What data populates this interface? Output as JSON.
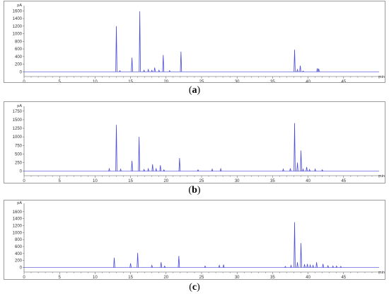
{
  "chart_data": [
    {
      "type": "line",
      "panel_label": "a",
      "y_unit": "pA",
      "x_unit": "min",
      "xlim": [
        0,
        50
      ],
      "ylim": [
        -50,
        1700
      ],
      "x_ticks": [
        0,
        5,
        10,
        15,
        20,
        25,
        30,
        35,
        40,
        45
      ],
      "y_ticks": [
        0,
        200,
        400,
        600,
        800,
        1000,
        1200,
        1400,
        1600
      ],
      "color": "#4a4ad8",
      "peaks": [
        [
          13.0,
          1200
        ],
        [
          13.5,
          30
        ],
        [
          15.2,
          370
        ],
        [
          16.3,
          1590
        ],
        [
          16.9,
          40
        ],
        [
          17.5,
          60
        ],
        [
          18.0,
          40
        ],
        [
          18.4,
          110
        ],
        [
          19.0,
          40
        ],
        [
          19.6,
          440
        ],
        [
          20.5,
          30
        ],
        [
          22.1,
          530
        ],
        [
          38.1,
          580
        ],
        [
          38.5,
          60
        ],
        [
          38.9,
          160
        ],
        [
          39.3,
          20
        ],
        [
          41.3,
          90
        ],
        [
          41.5,
          80
        ]
      ]
    },
    {
      "type": "line",
      "panel_label": "b",
      "y_unit": "pA",
      "x_unit": "min",
      "xlim": [
        0,
        50
      ],
      "ylim": [
        -50,
        1850
      ],
      "x_ticks": [
        0,
        5,
        10,
        15,
        20,
        25,
        30,
        35,
        40,
        45
      ],
      "y_ticks": [
        0,
        250,
        500,
        750,
        1000,
        1250,
        1500,
        1750
      ],
      "color": "#4a4ad8",
      "peaks": [
        [
          12.0,
          70
        ],
        [
          13.0,
          1350
        ],
        [
          13.6,
          60
        ],
        [
          15.2,
          300
        ],
        [
          16.2,
          1000
        ],
        [
          16.9,
          50
        ],
        [
          17.5,
          70
        ],
        [
          18.1,
          200
        ],
        [
          18.6,
          70
        ],
        [
          19.2,
          170
        ],
        [
          19.7,
          40
        ],
        [
          21.9,
          380
        ],
        [
          24.5,
          40
        ],
        [
          26.5,
          60
        ],
        [
          27.7,
          70
        ],
        [
          36.5,
          60
        ],
        [
          37.5,
          80
        ],
        [
          38.1,
          1400
        ],
        [
          38.5,
          250
        ],
        [
          39.0,
          600
        ],
        [
          39.3,
          60
        ],
        [
          39.8,
          120
        ],
        [
          40.2,
          50
        ],
        [
          41.0,
          60
        ],
        [
          42.0,
          40
        ]
      ]
    },
    {
      "type": "line",
      "panel_label": "c",
      "y_unit": "pA",
      "x_unit": "min",
      "xlim": [
        0,
        50
      ],
      "ylim": [
        -50,
        1800
      ],
      "x_ticks": [
        0,
        5,
        10,
        15,
        20,
        25,
        30,
        35,
        40,
        45
      ],
      "y_ticks": [
        0,
        200,
        400,
        600,
        800,
        1000,
        1200,
        1400,
        1600
      ],
      "color": "#4a4ad8",
      "peaks": [
        [
          12.7,
          280
        ],
        [
          15.0,
          120
        ],
        [
          16.0,
          420
        ],
        [
          18.0,
          60
        ],
        [
          19.3,
          150
        ],
        [
          19.8,
          40
        ],
        [
          21.8,
          330
        ],
        [
          25.5,
          40
        ],
        [
          27.5,
          60
        ],
        [
          28.1,
          80
        ],
        [
          36.8,
          30
        ],
        [
          37.6,
          60
        ],
        [
          38.1,
          1300
        ],
        [
          38.5,
          150
        ],
        [
          39.0,
          700
        ],
        [
          39.5,
          90
        ],
        [
          39.9,
          100
        ],
        [
          40.3,
          70
        ],
        [
          40.7,
          60
        ],
        [
          41.2,
          150
        ],
        [
          42.1,
          100
        ],
        [
          42.8,
          50
        ],
        [
          43.5,
          40
        ],
        [
          44.0,
          40
        ],
        [
          44.6,
          30
        ]
      ]
    }
  ],
  "captions": [
    "a",
    "b",
    "c"
  ]
}
